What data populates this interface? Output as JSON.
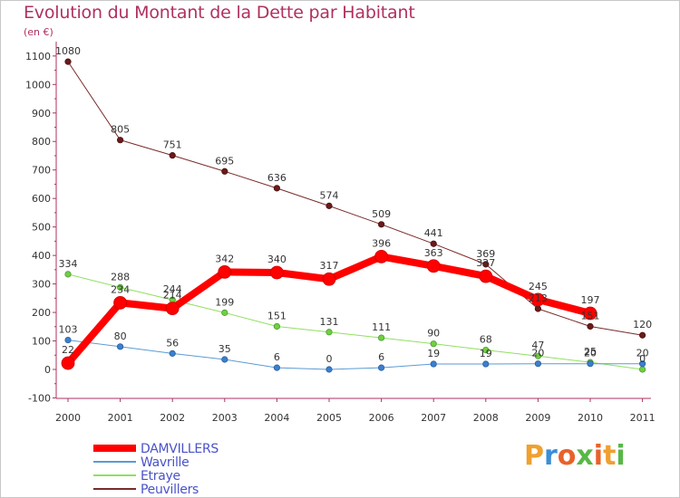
{
  "title": "Evolution du Montant de la Dette par Habitant",
  "unit": "(en €)",
  "logo": {
    "text": "Proxiti"
  },
  "chart_data": {
    "type": "line",
    "x": [
      "2000",
      "2001",
      "2002",
      "2003",
      "2004",
      "2005",
      "2006",
      "2007",
      "2008",
      "2009",
      "2010",
      "2011"
    ],
    "ylim": [
      -100,
      1100
    ],
    "yticks": [
      "-100",
      "0",
      "100",
      "200",
      "300",
      "400",
      "500",
      "600",
      "700",
      "800",
      "900",
      "1000",
      "1100"
    ],
    "grid": false,
    "legend_position": "bottom-left",
    "series": [
      {
        "name": "DAMVILLERS",
        "color": "#ff0000",
        "values": [
          22,
          234,
          214,
          342,
          340,
          317,
          396,
          363,
          327,
          245,
          197,
          null
        ],
        "labels": [
          "22",
          "234",
          "214",
          "342",
          "340",
          "317",
          "396",
          "363",
          "327",
          "245",
          "197",
          ""
        ]
      },
      {
        "name": "Wavrille",
        "color": "#5b9bd5",
        "values": [
          103,
          80,
          56,
          35,
          6,
          0,
          6,
          19,
          19,
          20,
          20,
          20
        ],
        "labels": [
          "103",
          "80",
          "56",
          "35",
          "6",
          "0",
          "6",
          "19",
          "19",
          "20",
          "20",
          "20"
        ]
      },
      {
        "name": "Etraye",
        "color": "#90e060",
        "values": [
          334,
          288,
          244,
          199,
          151,
          131,
          111,
          90,
          68,
          47,
          25,
          0
        ],
        "labels": [
          "334",
          "288",
          "244",
          "199",
          "151",
          "131",
          "111",
          "90",
          "68",
          "47",
          "25",
          "0"
        ]
      },
      {
        "name": "Peuvillers",
        "color": "#7a2a2a",
        "values": [
          1080,
          805,
          751,
          695,
          636,
          574,
          509,
          441,
          369,
          213,
          151,
          120
        ],
        "labels": [
          "1080",
          "805",
          "751",
          "695",
          "636",
          "574",
          "509",
          "441",
          "369",
          "213",
          "151",
          "120"
        ]
      }
    ]
  }
}
